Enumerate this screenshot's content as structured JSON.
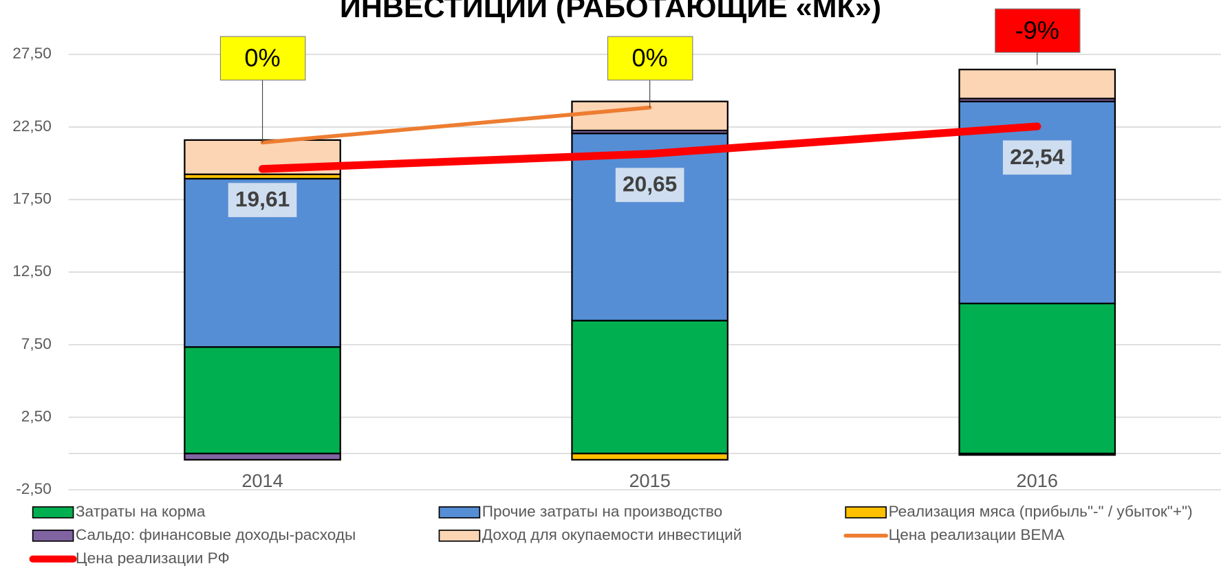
{
  "chart_data": {
    "type": "bar",
    "stacked": true,
    "title": "ИНВЕСТИЦИИ (РАБОТАЮЩИЕ «МК»)",
    "categories": [
      "2014",
      "2015",
      "2016"
    ],
    "ylim": [
      -2.5,
      27.5
    ],
    "yticks": [
      {
        "value": -2.5,
        "label": "-2,50"
      },
      {
        "value": 2.5,
        "label": "2,50"
      },
      {
        "value": 7.5,
        "label": "7,50"
      },
      {
        "value": 12.5,
        "label": "12,50"
      },
      {
        "value": 17.5,
        "label": "17,50"
      },
      {
        "value": 22.5,
        "label": "22,50"
      },
      {
        "value": 27.5,
        "label": "27,50"
      }
    ],
    "grid": true,
    "series": [
      {
        "name": "Затраты на корма",
        "color": "#00b050",
        "values": [
          7.34,
          9.16,
          10.34
        ]
      },
      {
        "name": "Прочие затраты на производство",
        "color": "#558ed5",
        "values": [
          11.6,
          12.9,
          13.92
        ]
      },
      {
        "name": "Реализация мяса (прибыль\"-\" / убыток\"+\")",
        "color": "#ffc000",
        "values": [
          0.3,
          -0.43,
          -0.1
        ]
      },
      {
        "name": "Сальдо: финансовые доходы-расходы",
        "color": "#8064a2",
        "values": [
          -0.43,
          0.2,
          0.2
        ]
      },
      {
        "name": "Доход для окупаемости инвестиций",
        "color": "#fcd5b5",
        "values": [
          2.36,
          2.0,
          2.0
        ]
      },
      {
        "name": "Цена реализации BEMA",
        "color": "#ed7d31",
        "type": "line",
        "values": [
          21.43,
          23.84,
          null
        ]
      },
      {
        "name": "Цена реализации РФ",
        "color": "#ff0000",
        "type": "line",
        "values": [
          19.61,
          20.65,
          22.54
        ],
        "value_labels": [
          "19,61",
          "20,65",
          "22,54"
        ]
      }
    ],
    "annotations": [
      {
        "text": "0%",
        "color": "#ffff00"
      },
      {
        "text": "0%",
        "color": "#ffff00"
      },
      {
        "text": "-9%",
        "color": "#ff0000"
      }
    ]
  }
}
